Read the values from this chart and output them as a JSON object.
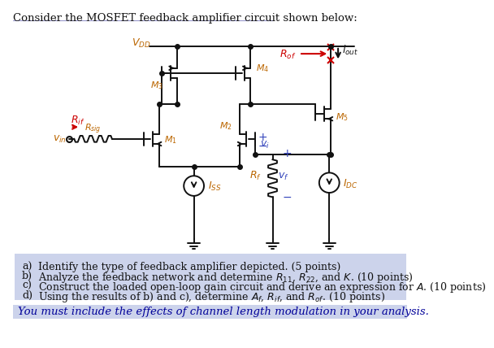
{
  "title": "Consider the MOSFET feedback amplifier circuit shown below:",
  "bg_color": "#ffffff",
  "questions_bg": "#ccd3eb",
  "footer_bg": "#ccd3eb",
  "q_lines": [
    [
      "a)",
      "Identify the type of feedback amplifier depicted. (5 points)"
    ],
    [
      "b)",
      "Analyze the feedback network and determine $R_{11}$, $R_{22}$, and $K$. (10 points)"
    ],
    [
      "c)",
      "Construct the loaded open-loop gain circuit and derive an expression for $A$. (10 points)"
    ],
    [
      "d)",
      "Using the results of b) and c), determine $A_f$, $R_{if}$, and $R_{of}$. (10 points)"
    ]
  ],
  "footer": "You must include the effects of channel length modulation in your analysis.",
  "red": "#cc0000",
  "blue": "#3344bb",
  "black": "#111111",
  "orange": "#bb6600"
}
